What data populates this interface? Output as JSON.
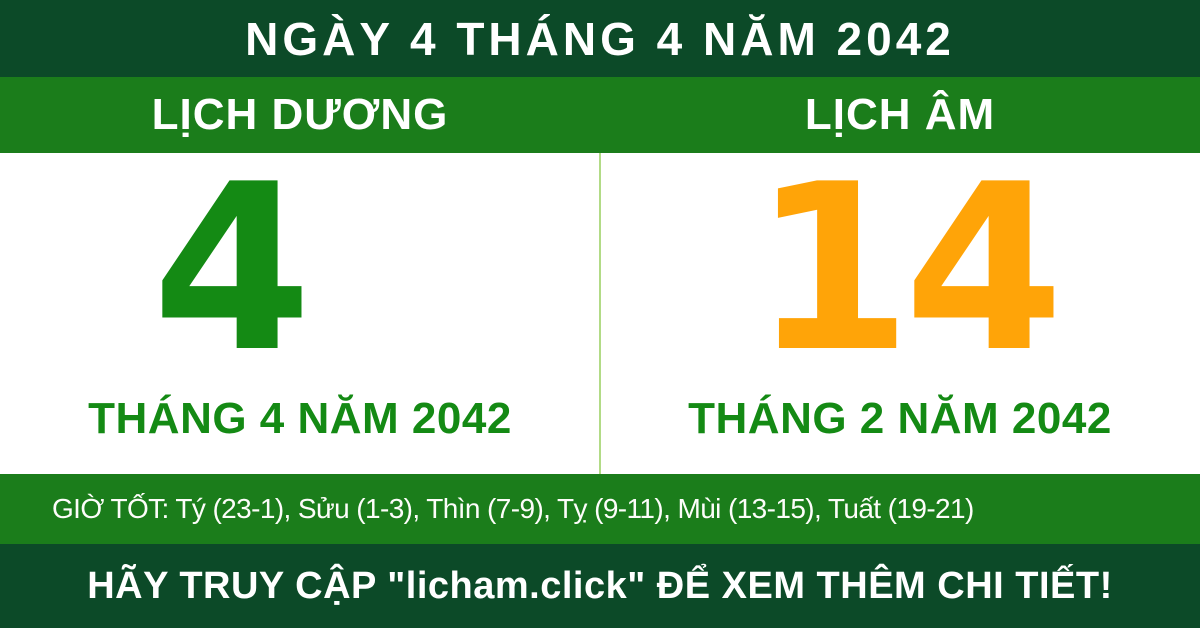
{
  "banner": {
    "title": "NGÀY 4 THÁNG 4 NĂM 2042"
  },
  "solar": {
    "tab_label": "LỊCH DƯƠNG",
    "day_number": "4",
    "month_year_label": "THÁNG 4 NĂM 2042"
  },
  "lunar": {
    "tab_label": "LỊCH ÂM",
    "day_number": "14",
    "month_year_label": "THÁNG 2 NĂM 2042"
  },
  "good_hours": {
    "text": "GIỜ TỐT: Tý (23-1), Sửu (1-3), Thìn (7-9), Tỵ (9-11), Mùi (13-15), Tuất (19-21)"
  },
  "footer": {
    "cta_text": "HÃY TRUY CẬP \"licham.click\" ĐỂ XEM THÊM CHI TIẾT!",
    "website": "licham.click"
  },
  "colors": {
    "dark-green": "#0c4a28",
    "green": "#1b7d1b",
    "number-green": "#148a14",
    "orange": "#ffa408",
    "divider-green": "#b2db86",
    "text-white": "#ffffff"
  }
}
